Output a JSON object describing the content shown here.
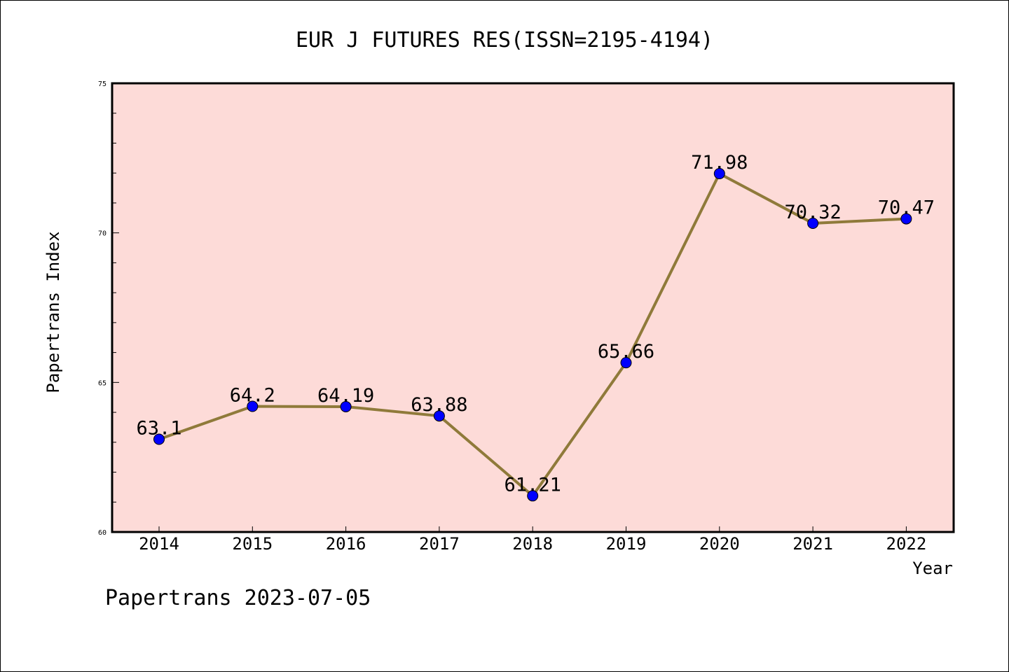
{
  "chart_data": {
    "type": "line",
    "title": "EUR J FUTURES RES(ISSN=2195-4194)",
    "xlabel": "Year",
    "ylabel": "Papertrans Index",
    "categories": [
      "2014",
      "2015",
      "2016",
      "2017",
      "2018",
      "2019",
      "2020",
      "2021",
      "2022"
    ],
    "series": [
      {
        "values": [
          63.1,
          64.2,
          64.19,
          63.88,
          61.21,
          65.66,
          71.98,
          70.32,
          70.47
        ],
        "labels": [
          "63.1",
          "64.2",
          "64.19",
          "63.88",
          "61.21",
          "65.66",
          "71.98",
          "70.32",
          "70.47"
        ]
      }
    ],
    "ylim": [
      60,
      75
    ],
    "yticks": [
      "60",
      "65",
      "70",
      "75"
    ],
    "grid": false,
    "legend": "none",
    "colors": {
      "plot_background": "#fddbd8",
      "line": "#8f7a3a",
      "marker": "#0000ff"
    }
  },
  "footer": "Papertrans 2023-07-05"
}
